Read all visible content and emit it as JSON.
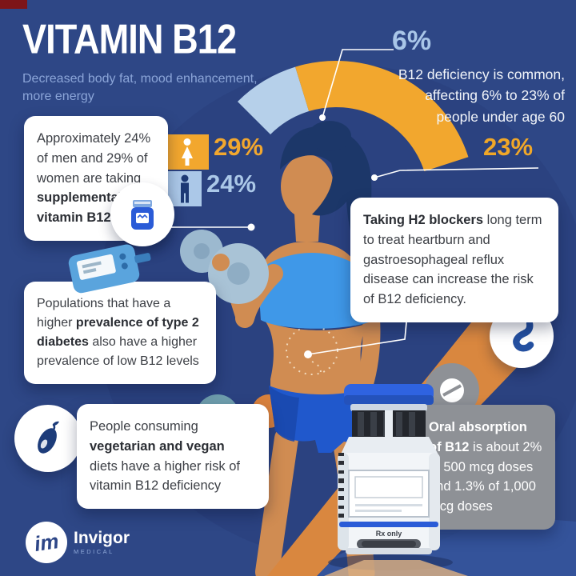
{
  "colors": {
    "background": "#2e4786",
    "accent_yellow": "#f2a72e",
    "pale_blue": "#abc8e8",
    "navy": "#1c3769",
    "card_gray": "#8e9196",
    "skin": "#d08c52",
    "top_blue": "#3f98e8",
    "shorts_blue": "#2058cc",
    "corner_red": "#7d1518"
  },
  "header": {
    "title": "VITAMIN B12",
    "subtitle": "Decreased body fat, mood enhancement, more energy"
  },
  "deficiency": {
    "pct_low": "6%",
    "pct_high": "23%",
    "lines": [
      "B12 deficiency is common,",
      "affecting 6% to 23% of",
      "people under age 60"
    ]
  },
  "supplement_chart": {
    "women_pct": "29%",
    "men_pct": "24%"
  },
  "cards": {
    "supplement": {
      "segments": [
        {
          "t": "Approximately 24% of men and 29% of women are taking ",
          "b": false
        },
        {
          "t": "supplemental vitamin B12",
          "b": true
        }
      ]
    },
    "diabetes": {
      "segments": [
        {
          "t": "Populations that have a higher ",
          "b": false
        },
        {
          "t": "prevalence of type 2 diabetes",
          "b": true
        },
        {
          "t": " also have a higher prevalence of low B12 levels",
          "b": false
        }
      ]
    },
    "h2": {
      "segments": [
        {
          "t": "Taking H2 blockers",
          "b": true
        },
        {
          "t": " long term to treat heartburn and gastroesophageal reflux disease can increase the risk of B12 deficiency.",
          "b": false
        }
      ]
    },
    "vegan": {
      "segments": [
        {
          "t": "People consuming ",
          "b": false
        },
        {
          "t": "vegetarian and vegan",
          "b": true
        },
        {
          "t": " diets have a higher risk of vitamin B12 deficiency",
          "b": false
        }
      ]
    },
    "oral": {
      "segments": [
        {
          "t": "Oral absorption of B12",
          "b": true
        },
        {
          "t": " is about 2% of 500 mcg doses and 1.3% of 1,000 mcg doses",
          "b": false
        }
      ]
    }
  },
  "vial": {
    "label": "Rx only"
  },
  "logo": {
    "monogram": "im",
    "name": "Invigor",
    "sub": "MEDICAL"
  },
  "chart_data": [
    {
      "type": "pie",
      "variant": "partial-donut",
      "title": "B12 deficiency is common, affecting 6% to 23% of people under age 60",
      "labels": [
        "6%",
        "23%"
      ],
      "values": [
        6,
        23
      ],
      "colors": [
        "#b6d0ea",
        "#f2a72e"
      ],
      "legend_position": "callout-lines"
    },
    {
      "type": "bar",
      "orientation": "horizontal",
      "title": "Approximately 24% of men and 29% of women are taking supplemental vitamin B12",
      "categories": [
        "women",
        "men"
      ],
      "values": [
        29,
        24
      ],
      "unit": "%",
      "colors": [
        "#f2a72e",
        "#abc8e8"
      ],
      "xlim": [
        0,
        100
      ],
      "grid": false
    }
  ]
}
